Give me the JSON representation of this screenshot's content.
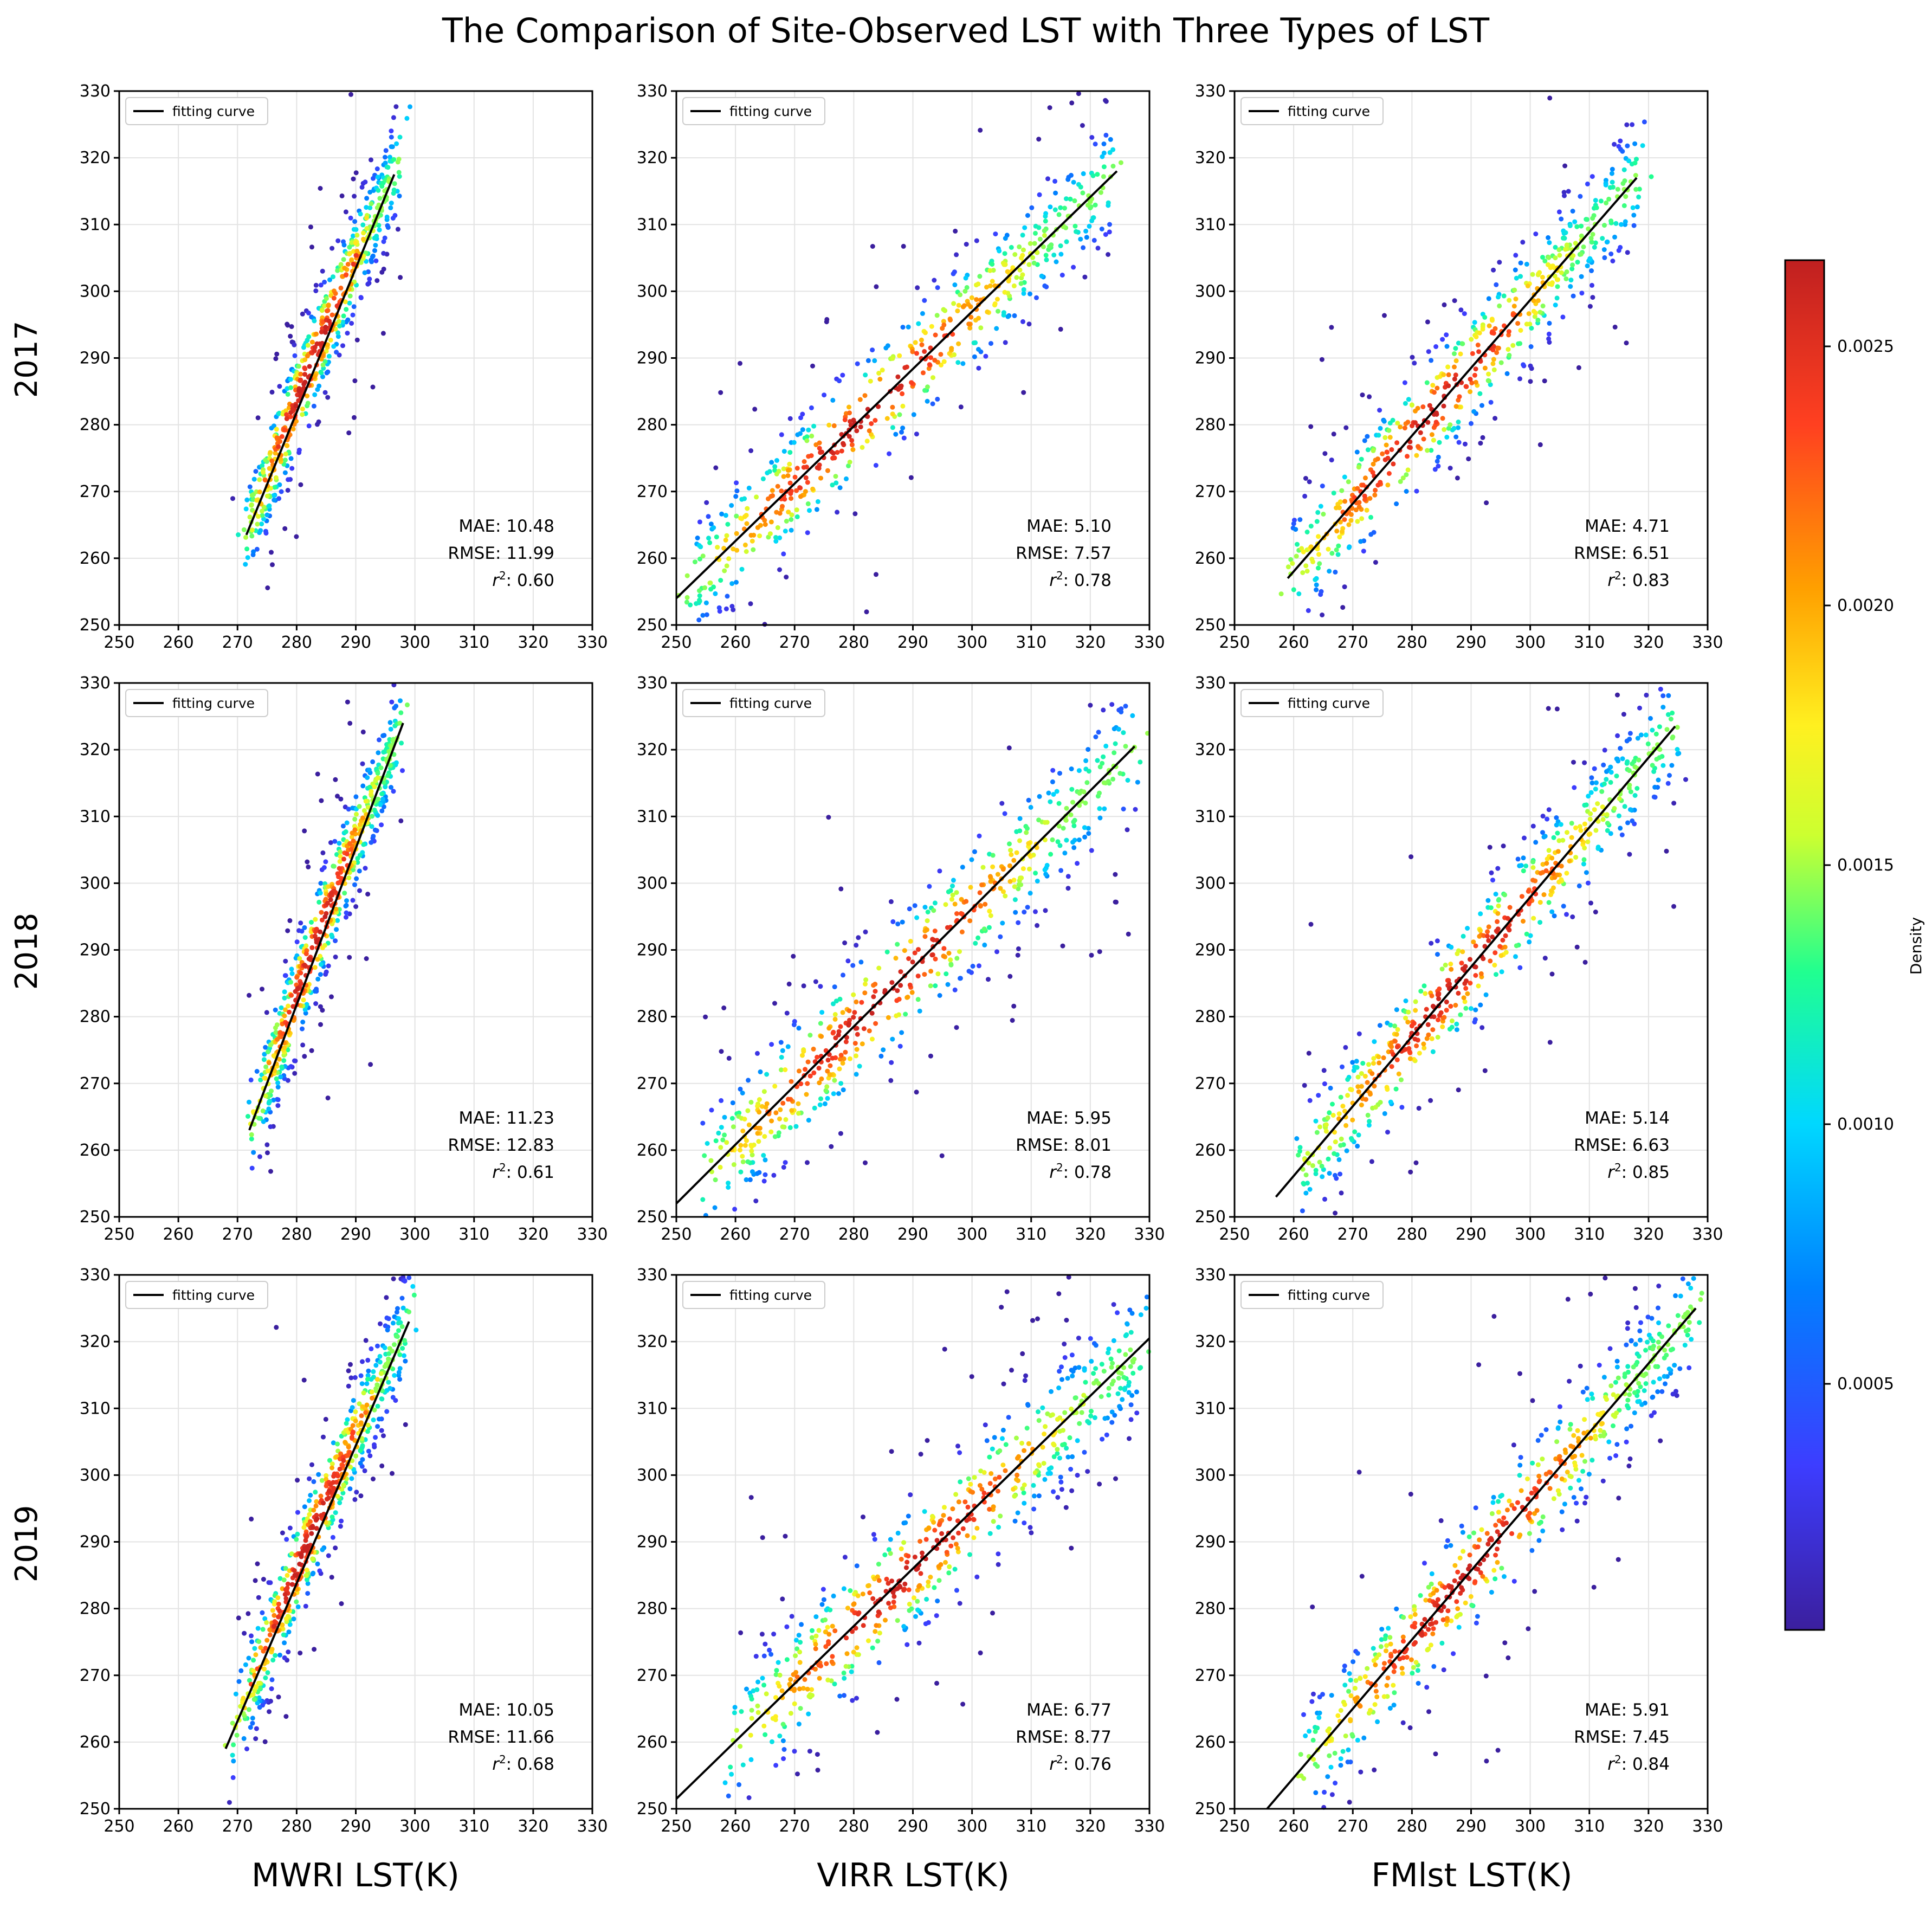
{
  "chart_data": {
    "type": "scatter",
    "title": "The Comparison of Site-Observed LST with Three Types of LST",
    "row_labels": [
      "2017",
      "2018",
      "2019"
    ],
    "column_xlabels": [
      "MWRI LST(K)",
      "VIRR LST(K)",
      "FMlst LST(K)"
    ],
    "xlim": [
      250,
      330
    ],
    "ylim": [
      250,
      330
    ],
    "ticks": [
      "250",
      "260",
      "270",
      "280",
      "290",
      "300",
      "310",
      "320",
      "330"
    ],
    "legend_label": "fitting curve",
    "grid": true,
    "colorbar": {
      "label": "Density",
      "range": [
        0,
        0.0027
      ],
      "ticks": [
        "0.0005",
        "0.0010",
        "0.0015",
        "0.0020",
        "0.0025"
      ],
      "colors": [
        "#3b1f9e",
        "#3d3dff",
        "#0080ff",
        "#00d8ff",
        "#20ff90",
        "#ccff30",
        "#fff020",
        "#ffa000",
        "#ff4020",
        "#c02020"
      ]
    },
    "stat_labels": {
      "mae": "MAE:",
      "rmse": "RMSE:",
      "r2": ": 0.xx"
    },
    "panels": [
      {
        "year": "2017",
        "product": "MWRI",
        "mae": "10.48",
        "rmse": "11.99",
        "r2": "0.60",
        "fit": {
          "x": [
            271.5,
            296.5
          ],
          "y": [
            263.5,
            317.5
          ]
        },
        "cluster": {
          "xmin": 272,
          "xmax": 297,
          "ymin": 250,
          "ymax": 321,
          "spread": 4,
          "curvature": 0.25
        }
      },
      {
        "year": "2017",
        "product": "VIRR",
        "mae": "5.10",
        "rmse": "7.57",
        "r2": "0.78",
        "fit": {
          "x": [
            250,
            324.5
          ],
          "y": [
            254,
            318
          ]
        },
        "cluster": {
          "xmin": 252,
          "xmax": 324,
          "ymin": 250,
          "ymax": 321,
          "spread": 4.5,
          "curvature": 0
        }
      },
      {
        "year": "2017",
        "product": "FMlst",
        "mae": "4.71",
        "rmse": "6.51",
        "r2": "0.83",
        "fit": {
          "x": [
            259,
            318
          ],
          "y": [
            257,
            317
          ]
        },
        "cluster": {
          "xmin": 259,
          "xmax": 318,
          "ymin": 250,
          "ymax": 321,
          "spread": 4.5,
          "curvature": 0
        }
      },
      {
        "year": "2018",
        "product": "MWRI",
        "mae": "11.23",
        "rmse": "12.83",
        "r2": "0.61",
        "fit": {
          "x": [
            272,
            298
          ],
          "y": [
            263,
            324
          ]
        },
        "cluster": {
          "xmin": 273,
          "xmax": 297,
          "ymin": 250,
          "ymax": 320,
          "spread": 4,
          "curvature": 0.25
        }
      },
      {
        "year": "2018",
        "product": "VIRR",
        "mae": "5.95",
        "rmse": "8.01",
        "r2": "0.78",
        "fit": {
          "x": [
            250,
            327.5
          ],
          "y": [
            252,
            320.5
          ]
        },
        "cluster": {
          "xmin": 255,
          "xmax": 327,
          "ymin": 250,
          "ymax": 320,
          "spread": 5,
          "curvature": 0
        }
      },
      {
        "year": "2018",
        "product": "FMlst",
        "mae": "5.14",
        "rmse": "6.63",
        "r2": "0.85",
        "fit": {
          "x": [
            257,
            324.5
          ],
          "y": [
            253,
            323.5
          ]
        },
        "cluster": {
          "xmin": 262,
          "xmax": 325,
          "ymin": 250,
          "ymax": 320,
          "spread": 4.5,
          "curvature": 0
        }
      },
      {
        "year": "2019",
        "product": "MWRI",
        "mae": "10.05",
        "rmse": "11.66",
        "r2": "0.68",
        "fit": {
          "x": [
            268,
            299
          ],
          "y": [
            259,
            323
          ]
        },
        "cluster": {
          "xmin": 270,
          "xmax": 299,
          "ymin": 252,
          "ymax": 324,
          "spread": 4,
          "curvature": 0.25
        }
      },
      {
        "year": "2019",
        "product": "VIRR",
        "mae": "6.77",
        "rmse": "8.77",
        "r2": "0.76",
        "fit": {
          "x": [
            250,
            330
          ],
          "y": [
            251.5,
            320.5
          ]
        },
        "cluster": {
          "xmin": 260,
          "xmax": 330,
          "ymin": 252,
          "ymax": 320,
          "spread": 5,
          "curvature": 0
        }
      },
      {
        "year": "2019",
        "product": "FMlst",
        "mae": "5.91",
        "rmse": "7.45",
        "r2": "0.84",
        "fit": {
          "x": [
            255.5,
            328
          ],
          "y": [
            250,
            325
          ]
        },
        "cluster": {
          "xmin": 262,
          "xmax": 328,
          "ymin": 252,
          "ymax": 324,
          "spread": 4.5,
          "curvature": 0
        }
      }
    ]
  }
}
